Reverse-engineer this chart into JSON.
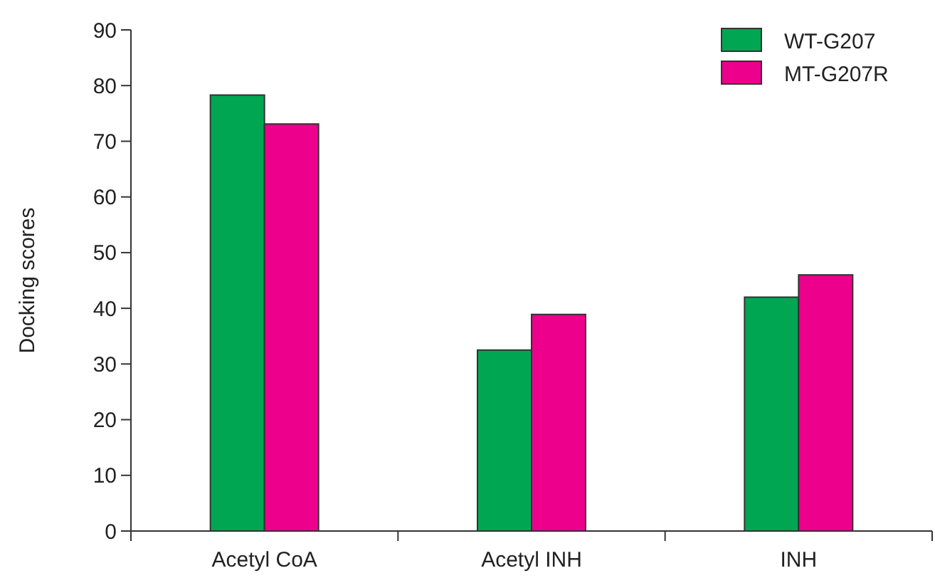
{
  "chart_data": {
    "type": "bar",
    "ylabel": "Docking scores",
    "categories": [
      "Acetyl CoA",
      "Acetyl INH",
      "INH"
    ],
    "series": [
      {
        "name": "WT-G207",
        "color": "#00a651",
        "values": [
          78.3,
          32.5,
          42.0
        ]
      },
      {
        "name": "MT-G207R",
        "color": "#ec008c",
        "values": [
          73.1,
          38.9,
          46.0
        ]
      }
    ],
    "ylim": [
      0,
      90
    ],
    "yticks": [
      0,
      10,
      20,
      30,
      40,
      50,
      60,
      70,
      80,
      90
    ],
    "grid": false,
    "legend": "top right"
  }
}
